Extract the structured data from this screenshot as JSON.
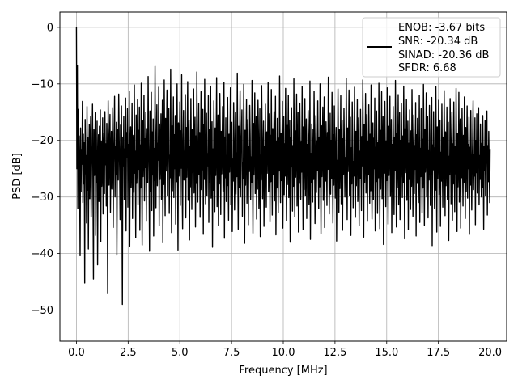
{
  "chart_data": {
    "type": "line",
    "title": "",
    "xlabel": "Frequency [MHz]",
    "ylabel": "PSD [dB]",
    "xlim": [
      -0.8,
      20.8
    ],
    "ylim": [
      -55.5,
      2.7
    ],
    "xticks": [
      0.0,
      2.5,
      5.0,
      7.5,
      10.0,
      12.5,
      15.0,
      17.5,
      20.0
    ],
    "xtick_labels": [
      "0.0",
      "2.5",
      "5.0",
      "7.5",
      "10.0",
      "12.5",
      "15.0",
      "17.5",
      "20.0"
    ],
    "yticks": [
      0,
      -10,
      -20,
      -30,
      -40,
      -50
    ],
    "ytick_labels": [
      "0",
      "−10",
      "−20",
      "−30",
      "−40",
      "−50"
    ],
    "grid": true,
    "legend_position": "top-right",
    "legend_lines": [
      "ENOB: -3.67 bits",
      "SNR: -20.34 dB",
      "SINAD: -20.36 dB",
      "SFDR: 6.68"
    ],
    "series": [
      {
        "color": "#000000",
        "x_start": 0.0,
        "x_end": 20.0,
        "values": [
          0.0,
          -25.0,
          -6.7,
          -32.1,
          -14.5,
          -23.8,
          -19.2,
          -26.5,
          -40.4,
          -17.8,
          -29.1,
          -21.6,
          -24.2,
          -13.1,
          -31.0,
          -18.9,
          -27.7,
          -20.4,
          -45.2,
          -16.3,
          -25.9,
          -22.7,
          -34.6,
          -14.0,
          -28.8,
          -19.5,
          -39.2,
          -23.1,
          -17.2,
          -30.3,
          -21.0,
          -15.8,
          -33.5,
          -24.7,
          -20.9,
          -13.6,
          -29.9,
          -44.5,
          -18.1,
          -26.2,
          -22.3,
          -15.1,
          -36.8,
          -21.8,
          -27.4,
          -16.6,
          -42.0,
          -24.9,
          -19.0,
          -30.8,
          -17.5,
          -23.6,
          -14.6,
          -37.9,
          -20.2,
          -28.1,
          -25.6,
          -16.0,
          -33.0,
          -22.0,
          -18.7,
          -29.4,
          -14.9,
          -24.3,
          -20.6,
          -31.6,
          -17.0,
          -26.7,
          -47.1,
          -13.0,
          -21.3,
          -27.9,
          -19.8,
          -15.4,
          -32.7,
          -23.3,
          -18.4,
          -28.6,
          -22.5,
          -14.2,
          -35.4,
          -24.0,
          -19.6,
          -12.2,
          -30.0,
          -21.1,
          -26.0,
          -16.8,
          -40.3,
          -23.9,
          -18.0,
          -27.0,
          -11.8,
          -20.0,
          -25.3,
          -34.0,
          -17.3,
          -22.8,
          -13.9,
          -29.6,
          -49.0,
          -19.4,
          -24.5,
          -15.7,
          -30.5,
          -21.5,
          -27.2,
          -12.5,
          -36.0,
          -18.6,
          -23.0,
          -14.4,
          -31.8,
          -20.7,
          -26.8,
          -11.3,
          -38.7,
          -22.1,
          -17.6,
          -28.3,
          -24.4,
          -13.4,
          -33.8,
          -20.1,
          -19.1,
          -29.2,
          -10.2,
          -25.8,
          -21.9,
          -37.2,
          -15.5,
          -27.6,
          -23.4,
          -12.8,
          -31.3,
          -18.2,
          -25.1,
          -14.1,
          -35.9,
          -20.8,
          -28.4,
          -9.9,
          -23.7,
          -38.5,
          -16.5,
          -26.4,
          -21.2,
          -12.0,
          -30.7,
          -19.7,
          -24.8,
          -15.0,
          -34.3,
          -22.4,
          -17.9,
          -27.5,
          -8.7,
          -20.3,
          -25.5,
          -39.6,
          -14.8,
          -29.0,
          -22.9,
          -11.5,
          -32.4,
          -18.5,
          -26.1,
          -16.2,
          -36.9,
          -21.4,
          -27.1,
          -6.9,
          -24.1,
          -31.9,
          -19.3,
          -13.7,
          -28.0,
          -20.5,
          -23.5,
          -10.6,
          -35.1,
          -17.1,
          -26.9,
          -22.2,
          -15.3,
          -30.4,
          -24.6,
          -12.9,
          -38.1,
          -19.9,
          -27.8,
          -9.3,
          -21.7,
          -33.3,
          -16.1,
          -25.4,
          -20.0,
          -11.1,
          -29.7,
          -23.2,
          -18.8,
          -14.3,
          -32.9,
          -22.6,
          -26.6,
          -7.4,
          -24.0,
          -36.3,
          -17.4,
          -28.9,
          -21.3,
          -12.3,
          -30.1,
          -19.0,
          -25.0,
          -15.6,
          -34.8,
          -20.4,
          -27.3,
          -10.0,
          -23.6,
          -39.4,
          -16.9,
          -26.3,
          -22.0,
          -13.2,
          -31.5,
          -18.3,
          -24.9,
          -8.4,
          -28.5,
          -35.6,
          -20.2,
          -14.7,
          -27.0,
          -21.9,
          -23.1,
          -11.9,
          -33.7,
          -17.7,
          -26.5,
          -19.6,
          -9.6,
          -30.6,
          -24.2,
          -16.4,
          -37.6,
          -21.0,
          -28.2,
          -12.6,
          -22.8,
          -32.2,
          -18.1,
          -25.7,
          -20.9,
          -10.9,
          -29.3,
          -23.8,
          -15.9,
          -35.3,
          -19.2,
          -27.6,
          -7.9,
          -24.7,
          -30.9,
          -21.6,
          -13.5,
          -26.0,
          -18.6,
          -33.6,
          -22.5,
          -11.4,
          -28.7,
          -20.6,
          -25.2,
          -14.5,
          -36.6,
          -17.2,
          -26.9,
          -9.2,
          -23.4,
          -31.2,
          -19.5,
          -15.2,
          -29.8,
          -22.3,
          -24.5,
          -12.1,
          -34.5,
          -18.0,
          -27.4,
          -20.7,
          -10.4,
          -30.2,
          -25.3,
          -16.7,
          -38.9,
          -21.5,
          -28.8,
          -13.0,
          -23.0,
          -32.6,
          -17.8,
          -26.2,
          -19.8,
          -8.9,
          -31.7,
          -24.3,
          -15.5,
          -35.0,
          -22.0,
          -27.7,
          -11.7,
          -20.1,
          -33.1,
          -18.4,
          -25.9,
          -21.2,
          -14.0,
          -29.0,
          -23.7,
          -9.7,
          -37.3,
          -19.4,
          -26.6,
          -16.0,
          -30.8,
          -22.7,
          -28.0,
          -12.4,
          -24.8,
          -34.1,
          -18.9,
          -25.6,
          -20.3,
          -10.7,
          -31.4,
          -21.8,
          -16.8,
          -36.1,
          -23.3,
          -27.2,
          -13.3,
          -19.7,
          -32.3,
          -25.1,
          -15.1,
          -29.5,
          -22.2,
          -26.4,
          -8.1,
          -24.1,
          -35.7,
          -17.5,
          -28.3,
          -20.8,
          -11.2,
          -30.0,
          -21.4,
          -19.0,
          -14.6,
          -33.4,
          -23.9,
          -26.8,
          -10.1,
          -22.4,
          -38.2,
          -18.2,
          -27.9,
          -20.5,
          -12.7,
          -31.1,
          -24.6,
          -16.3,
          -34.9,
          -21.1,
          -25.5,
          -13.8,
          -19.3,
          -30.5,
          -22.9,
          -27.5,
          -9.4,
          -23.5,
          -36.4,
          -17.0,
          -26.1,
          -20.0,
          -11.6,
          -29.4,
          -24.4,
          -15.8,
          -33.9,
          -21.7,
          -28.6,
          -12.9,
          -18.7,
          -32.0,
          -25.0,
          -14.4,
          -37.0,
          -22.6,
          -27.0,
          -10.3,
          -19.9,
          -30.3,
          -23.2,
          -16.6,
          -35.2,
          -21.0,
          -26.7,
          -13.6,
          -24.2,
          -31.8,
          -18.5,
          -25.8,
          -20.4,
          -9.8,
          -29.1,
          -23.0,
          -15.3,
          -34.4,
          -19.1,
          -27.3,
          -11.0,
          -22.1,
          -33.2,
          -17.9,
          -26.0,
          -21.5,
          -14.9,
          -30.7,
          -24.0,
          -12.2,
          -36.7,
          -20.2,
          -28.4,
          -16.1,
          -23.6,
          -32.8,
          -19.6,
          -25.4,
          -8.6,
          -21.3,
          -31.0,
          -18.8,
          -27.1,
          -22.4,
          -13.1,
          -35.5,
          -24.9,
          -15.7,
          -29.6,
          -20.6,
          -26.3,
          -10.8,
          -23.1,
          -34.2,
          -17.3,
          -27.8,
          -21.9,
          -12.0,
          -30.1,
          -25.2,
          -16.5,
          -38.0,
          -19.5,
          -24.7,
          -14.2,
          -22.8,
          -32.5,
          -20.9,
          -28.1,
          -9.1,
          -23.8,
          -33.5,
          -18.3,
          -26.5,
          -21.2,
          -11.8,
          -31.6,
          -24.5,
          -15.0,
          -36.2,
          -19.8,
          -27.6,
          -13.4,
          -22.0,
          -30.4,
          -20.3,
          -25.6,
          -10.5,
          -24.3,
          -35.8,
          -17.6,
          -28.7,
          -21.6,
          -12.6,
          -29.8,
          -23.3,
          -16.2,
          -33.8,
          -20.7,
          -26.2,
          -14.7,
          -19.2,
          -31.3,
          -25.7,
          -9.5,
          -37.5,
          -22.3,
          -27.4,
          -17.1,
          -23.9,
          -30.9,
          -18.0,
          -26.9,
          -11.3,
          -21.4,
          -34.7,
          -24.8,
          -15.6,
          -29.2,
          -20.1,
          -25.3,
          -13.0,
          -22.7,
          -32.1,
          -19.4,
          -28.2,
          -10.0,
          -23.4,
          -36.5,
          -17.4,
          -26.4,
          -21.0,
          -14.1,
          -30.6,
          -24.1,
          -12.3,
          -35.4,
          -20.5,
          -27.2,
          -16.7,
          -22.5,
          -31.5,
          -18.6,
          -25.1,
          -8.8,
          -21.8,
          -33.0,
          -23.6,
          -15.2,
          -29.5,
          -20.0,
          -26.7,
          -11.5,
          -24.6,
          -34.6,
          -19.0,
          -27.9,
          -13.9,
          -22.2,
          -30.2,
          -21.1,
          -17.7,
          -37.8,
          -23.5,
          -25.9,
          -10.9,
          -20.8,
          -32.7,
          -18.1,
          -28.5,
          -22.9,
          -12.1,
          -31.2,
          -24.4,
          -16.4,
          -35.9,
          -19.7,
          -26.0,
          -14.3,
          -21.5,
          -30.0,
          -23.0,
          -27.0,
          -9.0,
          -22.6,
          -34.0,
          -17.8,
          -25.5,
          -20.3,
          -11.1,
          -29.7,
          -24.9,
          -15.9,
          -36.8,
          -21.3,
          -27.7,
          -13.2,
          -19.1,
          -31.9,
          -23.7,
          -26.3,
          -10.6,
          -22.1,
          -33.6,
          -18.4,
          -28.0,
          -20.6,
          -12.8,
          -30.8,
          -25.4,
          -16.0,
          -35.1,
          -21.9,
          -26.8,
          -14.5,
          -23.2,
          -32.4,
          -19.3,
          -24.5,
          -9.3,
          -20.9,
          -37.1,
          -17.2,
          -27.5,
          -22.4,
          -11.7,
          -29.3,
          -24.0,
          -15.4,
          -34.3,
          -20.2,
          -26.1,
          -13.7,
          -21.7,
          -31.1,
          -18.9,
          -28.9,
          -10.2,
          -23.9,
          -33.9,
          -22.0,
          -16.9,
          -30.5,
          -19.6,
          -25.0,
          -12.5,
          -36.0,
          -21.2,
          -27.3,
          -14.8,
          -23.3,
          -32.9,
          -20.4,
          -26.6,
          -9.9,
          -22.7,
          -35.6,
          -18.2,
          -28.6,
          -21.6,
          -11.4,
          -30.3,
          -24.7,
          -15.8,
          -38.4,
          -19.9,
          -25.8,
          -13.1,
          -22.3,
          -31.7,
          -20.1,
          -27.1,
          -10.7,
          -23.4,
          -34.8,
          -17.5,
          -26.2,
          -21.1,
          -12.2,
          -29.9,
          -24.2,
          -16.3,
          -36.3,
          -20.7,
          -27.8,
          -14.0,
          -22.9,
          -33.1,
          -19.5,
          -25.3,
          -9.4,
          -21.5,
          -35.3,
          -18.7,
          -28.3,
          -23.1,
          -11.9,
          -31.4,
          -24.8,
          -15.1,
          -34.0,
          -20.0,
          -26.5,
          -13.5,
          -22.2,
          -30.1,
          -19.2,
          -27.4,
          -10.4,
          -23.6,
          -37.4,
          -17.9,
          -25.7,
          -21.8,
          -12.7,
          -30.6,
          -24.3,
          -16.6,
          -35.8,
          -20.5,
          -26.9,
          -14.6,
          -22.8,
          -32.2,
          -18.3,
          -28.1,
          -11.0,
          -21.0,
          -33.4,
          -23.8,
          -15.5,
          -29.4,
          -20.9,
          -25.1,
          -13.3,
          -36.9,
          -19.0,
          -27.6,
          -16.1,
          -22.5,
          -31.0,
          -24.5,
          -12.0,
          -34.5,
          -21.4,
          -26.4,
          -14.4,
          -23.0,
          -32.8,
          -19.8,
          -28.4,
          -10.1,
          -20.3,
          -35.0,
          -18.0,
          -25.6,
          -22.6,
          -11.6,
          -30.0,
          -24.1,
          -15.7,
          -33.7,
          -21.7,
          -27.0,
          -13.8,
          -19.3,
          -31.5,
          -23.5,
          -26.0,
          -12.4,
          -38.6,
          -20.8,
          -25.2,
          -14.9,
          -22.4,
          -32.0,
          -21.3,
          -28.8,
          -10.5,
          -24.0,
          -36.2,
          -17.6,
          -26.8,
          -23.2,
          -12.9,
          -29.6,
          -20.4,
          -16.4,
          -35.2,
          -22.1,
          -27.2,
          -13.6,
          -24.6,
          -31.8,
          -19.4,
          -25.4,
          -11.2,
          -21.6,
          -33.3,
          -18.5,
          -28.0,
          -23.7,
          -14.1,
          -30.4,
          -20.1,
          -16.8,
          -37.7,
          -22.8,
          -26.1,
          -12.6,
          -19.6,
          -31.2,
          -24.9,
          -15.0,
          -34.1,
          -20.6,
          -27.7,
          -13.2,
          -23.3,
          -32.6,
          -21.0,
          -25.9,
          -10.8,
          -22.2,
          -36.1,
          -18.8,
          -28.2,
          -24.4,
          -11.5,
          -30.9,
          -20.2,
          -16.2,
          -35.5,
          -21.9,
          -26.6,
          -14.3,
          -23.8,
          -31.6,
          -19.1,
          -27.5,
          -12.3,
          -25.5,
          -33.8,
          -17.7,
          -29.0,
          -22.0,
          -13.9,
          -30.2,
          -20.7,
          -25.0,
          -15.9,
          -36.6,
          -21.2,
          -27.9,
          -14.7,
          -23.4,
          -32.3,
          -24.2,
          -19.7,
          -13.0,
          -28.7,
          -22.5,
          -26.3,
          -16.0,
          -34.9,
          -20.0,
          -25.7,
          -15.3,
          -29.3,
          -23.9,
          -21.4,
          -14.2,
          -31.4,
          -22.7,
          -26.9,
          -17.1,
          -24.8,
          -30.0,
          -20.5,
          -28.3,
          -15.6,
          -23.1,
          -35.7,
          -21.1,
          -25.3,
          -16.5,
          -29.8,
          -24.1,
          -22.3,
          -14.8,
          -33.2,
          -20.9,
          -27.3,
          -18.4,
          -24.7,
          -31.0,
          -21.5
        ]
      }
    ]
  }
}
